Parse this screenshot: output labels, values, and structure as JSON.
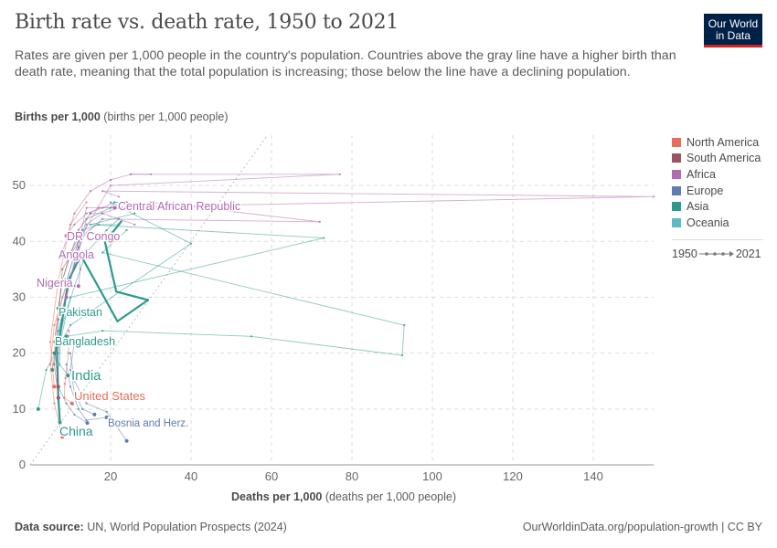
{
  "header": {
    "title": "Birth rate vs. death rate, 1950 to 2021",
    "subtitle": "Rates are given per 1,000 people in the country's population. Countries above the gray line have a higher birth than death rate, meaning that the total population is increasing; those below the line have a declining population.",
    "logo_text": "Our World in Data"
  },
  "footer": {
    "source_label": "Data source:",
    "source": "UN, World Population Prospects (2024)",
    "link": "OurWorldinData.org/population-growth | CC BY"
  },
  "legend": {
    "items": [
      {
        "label": "North America",
        "color": "#E56E5A"
      },
      {
        "label": "South America",
        "color": "#9A5460"
      },
      {
        "label": "Africa",
        "color": "#B16BB1"
      },
      {
        "label": "Europe",
        "color": "#5F7BAF"
      },
      {
        "label": "Asia",
        "color": "#2E9A8E"
      },
      {
        "label": "Oceania",
        "color": "#5FB8C4"
      }
    ],
    "time_start": "1950",
    "time_end": "2021"
  },
  "chart_data": {
    "type": "line",
    "subtype": "connected-scatter",
    "xlabel_bold": "Deaths per 1,000",
    "xlabel_unit": "(deaths per 1,000 people)",
    "ylabel_bold": "Births per 1,000",
    "ylabel_unit": "(births per 1,000 people)",
    "xlim": [
      0,
      155
    ],
    "ylim": [
      0,
      59
    ],
    "xticks": [
      20,
      40,
      60,
      80,
      100,
      120,
      140
    ],
    "yticks": [
      0,
      10,
      20,
      30,
      40,
      50
    ],
    "grid": true,
    "reference_line": "births = deaths",
    "legend_position": "right",
    "series": [
      {
        "name": "China",
        "region": "Asia",
        "labeled": true,
        "bold": true,
        "points": [
          [
            22.7,
            43.6
          ],
          [
            18.6,
            39.9
          ],
          [
            21.4,
            31
          ],
          [
            29.3,
            29.5
          ],
          [
            21.7,
            25.7
          ],
          [
            12.6,
            37.5
          ],
          [
            9.5,
            33
          ],
          [
            7.3,
            23
          ],
          [
            6.6,
            21
          ],
          [
            7,
            12
          ],
          [
            7.4,
            7.6
          ]
        ]
      },
      {
        "name": "India",
        "region": "Asia",
        "labeled": true,
        "points": [
          [
            22,
            44
          ],
          [
            19,
            42
          ],
          [
            14,
            38
          ],
          [
            11,
            32
          ],
          [
            9,
            27
          ],
          [
            7.5,
            22
          ],
          [
            7.3,
            18
          ],
          [
            9.4,
            16
          ]
        ]
      },
      {
        "name": "United States",
        "region": "North America",
        "labeled": true,
        "points": [
          [
            9.6,
            24
          ],
          [
            9.5,
            20
          ],
          [
            8.8,
            15.5
          ],
          [
            8.6,
            14.5
          ],
          [
            8.5,
            12
          ],
          [
            10.4,
            11
          ]
        ]
      },
      {
        "name": "Bosnia and Herz.",
        "region": "Europe",
        "labeled": true,
        "points": [
          [
            12,
            39
          ],
          [
            9,
            30
          ],
          [
            7,
            20
          ],
          [
            7,
            14
          ],
          [
            9,
            11
          ],
          [
            11,
            9
          ],
          [
            14.2,
            7.5
          ]
        ]
      },
      {
        "name": "Central African Republic",
        "region": "Africa",
        "labeled": true,
        "points": [
          [
            26,
            43
          ],
          [
            22,
            44
          ],
          [
            18,
            45
          ],
          [
            15,
            45
          ],
          [
            17,
            46
          ],
          [
            21,
            46
          ]
        ]
      },
      {
        "name": "DR Congo",
        "region": "Africa",
        "labeled": true,
        "points": [
          [
            24,
            47
          ],
          [
            21,
            47
          ],
          [
            18,
            46
          ],
          [
            14,
            45
          ],
          [
            11,
            43
          ],
          [
            9,
            41
          ]
        ]
      },
      {
        "name": "Angola",
        "region": "Africa",
        "labeled": true,
        "points": [
          [
            30,
            52
          ],
          [
            25,
            52
          ],
          [
            20,
            51
          ],
          [
            15,
            49
          ],
          [
            11,
            45
          ],
          [
            8,
            38
          ]
        ]
      },
      {
        "name": "Nigeria",
        "region": "Africa",
        "labeled": true,
        "points": [
          [
            27,
            46
          ],
          [
            22,
            46
          ],
          [
            18,
            45
          ],
          [
            14,
            43
          ],
          [
            12,
            38
          ],
          [
            12.5,
            35
          ],
          [
            12,
            32
          ]
        ]
      },
      {
        "name": "Pakistan",
        "region": "Asia",
        "labeled": true,
        "points": [
          [
            22,
            43
          ],
          [
            17,
            43
          ],
          [
            13,
            42
          ],
          [
            10,
            38
          ],
          [
            8,
            33
          ],
          [
            7,
            28
          ]
        ]
      },
      {
        "name": "Bangladesh",
        "region": "Asia",
        "labeled": true,
        "points": [
          [
            24,
            47
          ],
          [
            21,
            47
          ],
          [
            20,
            46
          ],
          [
            14,
            44
          ],
          [
            10,
            33
          ],
          [
            7,
            24
          ],
          [
            5.5,
            17
          ]
        ]
      },
      {
        "region": "Africa",
        "points": [
          [
            22,
            48
          ],
          [
            18,
            49
          ],
          [
            155,
            48
          ],
          [
            14,
            46
          ],
          [
            9,
            30
          ]
        ]
      },
      {
        "region": "Africa",
        "points": [
          [
            25,
            52
          ],
          [
            77,
            52
          ],
          [
            20,
            50
          ],
          [
            12,
            40
          ],
          [
            9,
            33
          ]
        ]
      },
      {
        "region": "Africa",
        "points": [
          [
            30,
            47
          ],
          [
            72,
            43.5
          ],
          [
            18,
            44
          ],
          [
            13,
            41
          ],
          [
            8,
            28
          ]
        ]
      },
      {
        "region": "Asia",
        "points": [
          [
            24,
            42
          ],
          [
            18,
            38
          ],
          [
            93,
            25
          ],
          [
            92.5,
            19.6
          ],
          [
            55,
            23
          ],
          [
            18,
            24
          ],
          [
            9,
            23
          ]
        ]
      },
      {
        "region": "Asia",
        "points": [
          [
            26,
            45
          ],
          [
            15,
            43
          ],
          [
            73,
            40.6
          ],
          [
            10,
            30
          ],
          [
            6,
            20
          ]
        ]
      },
      {
        "region": "Asia",
        "points": [
          [
            20,
            47
          ],
          [
            40,
            39.6
          ],
          [
            10,
            25
          ],
          [
            4,
            17
          ],
          [
            2,
            10
          ]
        ]
      },
      {
        "region": "Oceania",
        "points": [
          [
            18,
            44
          ],
          [
            12,
            40
          ],
          [
            8,
            30
          ],
          [
            6,
            22
          ],
          [
            7,
            18
          ]
        ]
      },
      {
        "region": "Europe",
        "points": [
          [
            11,
            22
          ],
          [
            10,
            17
          ],
          [
            11,
            13
          ],
          [
            13,
            10
          ],
          [
            16,
            9
          ]
        ]
      },
      {
        "region": "Europe",
        "points": [
          [
            10,
            20
          ],
          [
            11,
            15
          ],
          [
            14,
            11
          ],
          [
            19,
            9.5
          ],
          [
            24,
            4.3
          ]
        ]
      },
      {
        "region": "Europe",
        "points": [
          [
            9,
            18
          ],
          [
            10,
            14
          ],
          [
            12,
            10
          ],
          [
            14,
            8
          ],
          [
            19,
            8.5
          ]
        ]
      },
      {
        "region": "South America",
        "points": [
          [
            15,
            45
          ],
          [
            12,
            42
          ],
          [
            8,
            33
          ],
          [
            6,
            22
          ],
          [
            7,
            14
          ]
        ]
      },
      {
        "region": "South America",
        "points": [
          [
            12,
            40
          ],
          [
            8,
            35
          ],
          [
            7,
            26
          ],
          [
            6,
            18
          ],
          [
            7,
            12
          ]
        ]
      },
      {
        "region": "North America",
        "points": [
          [
            14,
            47
          ],
          [
            10,
            43
          ],
          [
            7,
            33
          ],
          [
            5,
            22
          ],
          [
            6,
            14
          ]
        ]
      },
      {
        "region": "North America",
        "points": [
          [
            9,
            32
          ],
          [
            6,
            25
          ],
          [
            5,
            18
          ],
          [
            6,
            11
          ],
          [
            8,
            5
          ]
        ]
      }
    ]
  }
}
